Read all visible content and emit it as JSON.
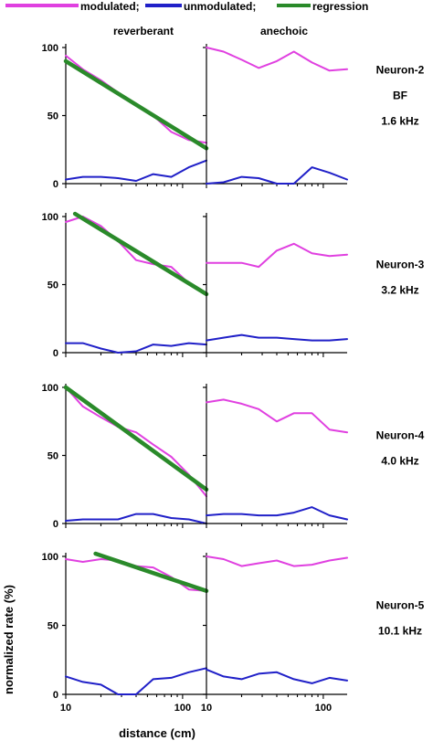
{
  "legend": [
    {
      "label": "modulated;",
      "color": "#e040e0"
    },
    {
      "label": "unmodulated;",
      "color": "#2020c8"
    },
    {
      "label": "regression",
      "color": "#2a8a2a"
    }
  ],
  "column_headers": [
    "reverberant",
    "anechoic"
  ],
  "xlabel": "distance (cm)",
  "ylabel": "normalized rate (%)",
  "colors": {
    "modulated": "#e040e0",
    "unmodulated": "#2020c8",
    "regression": "#2a8a2a",
    "axis": "#000000"
  },
  "chart_data": [
    {
      "type": "line",
      "panel": "neuron-2-reverberant",
      "column": "reverberant",
      "neuron_labels": [
        "Neuron-2",
        "BF",
        "1.6 kHz"
      ],
      "x_scale": "log",
      "xlim": [
        10,
        160
      ],
      "ylim": [
        0,
        100
      ],
      "y_ticks": [
        0,
        50,
        100
      ],
      "x_ticks": [
        10,
        100
      ],
      "series": [
        {
          "name": "modulated;",
          "x": [
            10,
            14,
            20,
            28,
            40,
            56,
            80,
            113,
            160
          ],
          "y": [
            94,
            84,
            76,
            67,
            58,
            50,
            38,
            32,
            30
          ]
        },
        {
          "name": "unmodulated;",
          "x": [
            10,
            14,
            20,
            28,
            40,
            56,
            80,
            113,
            160
          ],
          "y": [
            3,
            5,
            5,
            4,
            2,
            7,
            5,
            12,
            17
          ]
        },
        {
          "name": "regression",
          "x": [
            10,
            160
          ],
          "y": [
            90,
            26
          ]
        }
      ]
    },
    {
      "type": "line",
      "panel": "neuron-2-anechoic",
      "column": "anechoic",
      "x_scale": "log",
      "xlim": [
        10,
        160
      ],
      "ylim": [
        0,
        100
      ],
      "x_ticks": [
        10,
        100
      ],
      "series": [
        {
          "name": "modulated;",
          "x": [
            10,
            14,
            20,
            28,
            40,
            56,
            80,
            113,
            160
          ],
          "y": [
            100,
            97,
            91,
            85,
            90,
            97,
            89,
            83,
            84
          ]
        },
        {
          "name": "unmodulated;",
          "x": [
            10,
            14,
            20,
            28,
            40,
            56,
            80,
            113,
            160
          ],
          "y": [
            0,
            1,
            5,
            4,
            0,
            0,
            12,
            8,
            3
          ]
        }
      ]
    },
    {
      "type": "line",
      "panel": "neuron-3-reverberant",
      "column": "reverberant",
      "neuron_labels": [
        "Neuron-3",
        "3.2 kHz"
      ],
      "x_scale": "log",
      "xlim": [
        10,
        160
      ],
      "ylim": [
        0,
        100
      ],
      "y_ticks": [
        0,
        50,
        100
      ],
      "x_ticks": [
        10,
        100
      ],
      "series": [
        {
          "name": "modulated;",
          "x": [
            10,
            14,
            20,
            28,
            40,
            56,
            80,
            113,
            160
          ],
          "y": [
            96,
            100,
            93,
            82,
            68,
            65,
            63,
            51,
            43
          ]
        },
        {
          "name": "unmodulated;",
          "x": [
            10,
            14,
            20,
            28,
            40,
            56,
            80,
            113,
            160
          ],
          "y": [
            7,
            7,
            3,
            0,
            1,
            6,
            5,
            7,
            6
          ]
        },
        {
          "name": "regression",
          "x": [
            12,
            160
          ],
          "y": [
            102,
            43
          ]
        }
      ]
    },
    {
      "type": "line",
      "panel": "neuron-3-anechoic",
      "column": "anechoic",
      "x_scale": "log",
      "xlim": [
        10,
        160
      ],
      "ylim": [
        0,
        100
      ],
      "x_ticks": [
        10,
        100
      ],
      "series": [
        {
          "name": "modulated;",
          "x": [
            10,
            14,
            20,
            28,
            40,
            56,
            80,
            113,
            160
          ],
          "y": [
            66,
            66,
            66,
            63,
            75,
            80,
            73,
            71,
            72
          ]
        },
        {
          "name": "unmodulated;",
          "x": [
            10,
            14,
            20,
            28,
            40,
            56,
            80,
            113,
            160
          ],
          "y": [
            9,
            11,
            13,
            11,
            11,
            10,
            9,
            9,
            10
          ]
        }
      ]
    },
    {
      "type": "line",
      "panel": "neuron-4-reverberant",
      "column": "reverberant",
      "neuron_labels": [
        "Neuron-4",
        "4.0 kHz"
      ],
      "x_scale": "log",
      "xlim": [
        10,
        160
      ],
      "ylim": [
        0,
        100
      ],
      "y_ticks": [
        0,
        50,
        100
      ],
      "x_ticks": [
        10,
        100
      ],
      "series": [
        {
          "name": "modulated;",
          "x": [
            10,
            14,
            20,
            28,
            40,
            56,
            80,
            113,
            160
          ],
          "y": [
            100,
            86,
            78,
            71,
            67,
            58,
            49,
            36,
            20
          ]
        },
        {
          "name": "unmodulated;",
          "x": [
            10,
            14,
            20,
            28,
            40,
            56,
            80,
            113,
            160
          ],
          "y": [
            2,
            3,
            3,
            3,
            7,
            7,
            4,
            3,
            0
          ]
        },
        {
          "name": "regression",
          "x": [
            10,
            160
          ],
          "y": [
            100,
            25
          ]
        }
      ]
    },
    {
      "type": "line",
      "panel": "neuron-4-anechoic",
      "column": "anechoic",
      "x_scale": "log",
      "xlim": [
        10,
        160
      ],
      "ylim": [
        0,
        100
      ],
      "x_ticks": [
        10,
        100
      ],
      "series": [
        {
          "name": "modulated;",
          "x": [
            10,
            14,
            20,
            28,
            40,
            56,
            80,
            113,
            160
          ],
          "y": [
            89,
            91,
            88,
            84,
            75,
            81,
            81,
            69,
            67
          ]
        },
        {
          "name": "unmodulated;",
          "x": [
            10,
            14,
            20,
            28,
            40,
            56,
            80,
            113,
            160
          ],
          "y": [
            6,
            7,
            7,
            6,
            6,
            8,
            12,
            6,
            3
          ]
        }
      ]
    },
    {
      "type": "line",
      "panel": "neuron-5-reverberant",
      "column": "reverberant",
      "neuron_labels": [
        "Neuron-5",
        "10.1 kHz"
      ],
      "x_scale": "log",
      "xlim": [
        10,
        160
      ],
      "ylim": [
        0,
        100
      ],
      "y_ticks": [
        0,
        50,
        100
      ],
      "x_ticks": [
        10,
        100
      ],
      "series": [
        {
          "name": "modulated;",
          "x": [
            10,
            14,
            20,
            28,
            40,
            56,
            80,
            113,
            160
          ],
          "y": [
            98,
            96,
            98,
            97,
            93,
            92,
            85,
            76,
            75
          ]
        },
        {
          "name": "unmodulated;",
          "x": [
            10,
            14,
            20,
            28,
            40,
            56,
            80,
            113,
            160
          ],
          "y": [
            13,
            9,
            7,
            0,
            0,
            11,
            12,
            16,
            19
          ]
        },
        {
          "name": "regression",
          "x": [
            18,
            160
          ],
          "y": [
            102,
            75
          ]
        }
      ]
    },
    {
      "type": "line",
      "panel": "neuron-5-anechoic",
      "column": "anechoic",
      "x_scale": "log",
      "xlim": [
        10,
        160
      ],
      "ylim": [
        0,
        100
      ],
      "x_ticks": [
        10,
        100
      ],
      "series": [
        {
          "name": "modulated;",
          "x": [
            10,
            14,
            20,
            28,
            40,
            56,
            80,
            113,
            160
          ],
          "y": [
            100,
            98,
            93,
            95,
            97,
            93,
            94,
            97,
            99
          ]
        },
        {
          "name": "unmodulated;",
          "x": [
            10,
            14,
            20,
            28,
            40,
            56,
            80,
            113,
            160
          ],
          "y": [
            18,
            13,
            11,
            15,
            16,
            11,
            8,
            12,
            10
          ]
        }
      ]
    }
  ]
}
